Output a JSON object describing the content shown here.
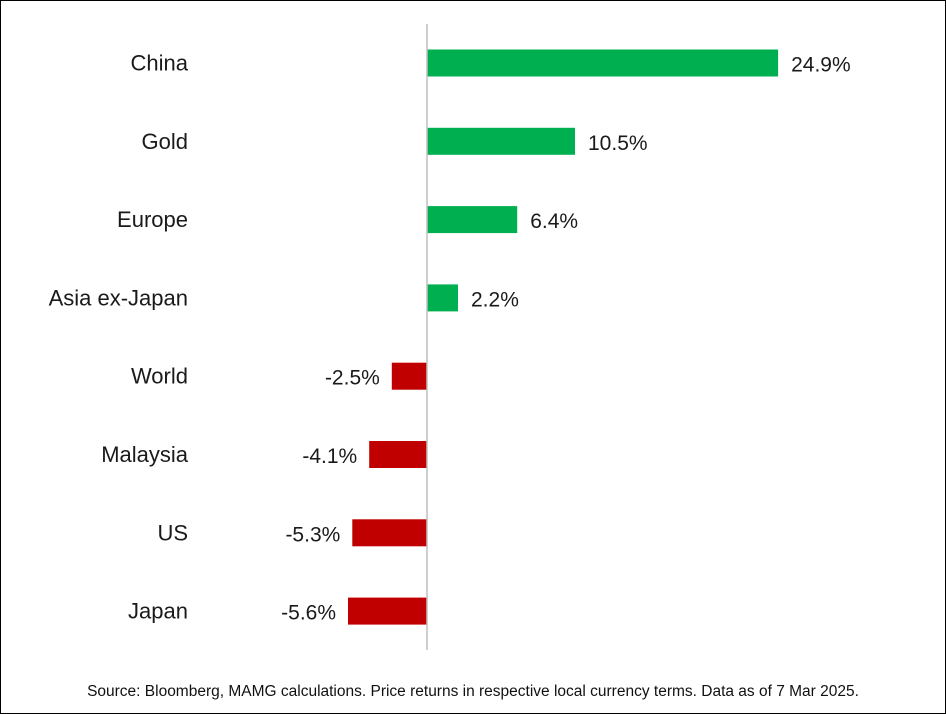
{
  "chart_data": {
    "type": "bar",
    "orientation": "horizontal",
    "categories": [
      "China",
      "Gold",
      "Europe",
      "Asia ex-Japan",
      "World",
      "Malaysia",
      "US",
      "Japan"
    ],
    "values": [
      24.9,
      10.5,
      6.4,
      2.2,
      -2.5,
      -4.1,
      -5.3,
      -5.6
    ],
    "value_labels": [
      "24.9%",
      "10.5%",
      "6.4%",
      "2.2%",
      "-2.5%",
      "-4.1%",
      "-5.3%",
      "-5.6%"
    ],
    "unit": "%",
    "title": "",
    "xlabel": "",
    "ylabel": "",
    "xlim": [
      -30,
      30
    ],
    "grid": false,
    "legend": "none",
    "colors": {
      "positive": "#00b050",
      "negative": "#c00000",
      "axis": "#bfbfbf"
    }
  },
  "source_note": "Source: Bloomberg, MAMG calculations. Price returns in respective local currency terms. Data as of 7 Mar 2025."
}
